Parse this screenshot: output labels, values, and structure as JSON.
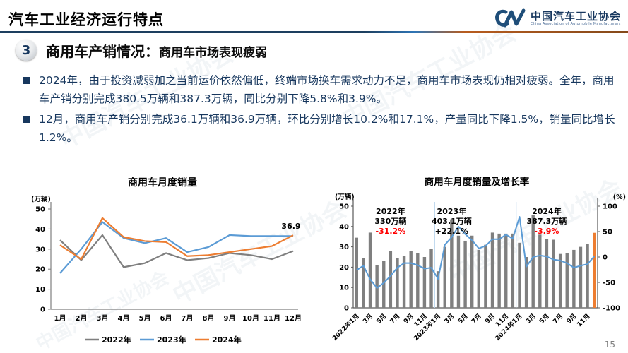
{
  "header": {
    "title": "汽车工业经济运行特点",
    "logo": {
      "name": "中国汽车工业协会",
      "subtitle": "China Association of Automobile Manufacturers"
    }
  },
  "section": {
    "number": "3",
    "title_main": "商用车产销情况：",
    "title_sub": "商用车市场表现疲弱"
  },
  "bullets": [
    "2024年，由于投资减弱加之当前运价依然偏低，终端市场换车需求动力不足，商用车市场表现仍相对疲弱。全年，商用车产销分别完成380.5万辆和387.3万辆，同比分别下降5.8%和3.9%。",
    "12月，商用车产销分别完成36.1万辆和36.9万辆，环比分别增长10.2%和17.1%，产量同比下降1.5%，销量同比增长1.2%。"
  ],
  "watermark": "中国汽车工业协会",
  "page_number": "15",
  "colors": {
    "accent_navy": "#17375e",
    "gray_series": "#7f7f7f",
    "blue_series": "#5b9bd5",
    "orange_series": "#ed7d31",
    "axis": "#7f7f7f",
    "red_negative": "#ff0000"
  },
  "chart_data": [
    {
      "type": "line",
      "title": "商用车月度销量",
      "unit_label": "(万辆)",
      "categories": [
        "1月",
        "2月",
        "3月",
        "4月",
        "5月",
        "6月",
        "7月",
        "8月",
        "9月",
        "10月",
        "11月",
        "12月"
      ],
      "series": [
        {
          "name": "2022年",
          "color": "#7f7f7f",
          "values": [
            34.5,
            24.5,
            37,
            21,
            23,
            28,
            24.5,
            25.5,
            28,
            27,
            25,
            29
          ]
        },
        {
          "name": "2023年",
          "color": "#5b9bd5",
          "values": [
            18,
            30,
            43.5,
            35.5,
            33,
            35.5,
            28.5,
            31,
            37,
            36.5,
            36.5,
            36.5
          ]
        },
        {
          "name": "2024年",
          "color": "#ed7d31",
          "values": [
            32,
            25,
            45.5,
            36,
            34,
            33.5,
            26.5,
            27,
            28.5,
            30,
            31.5,
            36.9
          ]
        }
      ],
      "end_label": "36.9",
      "ylim": [
        0,
        50
      ],
      "yticks": [
        0,
        10,
        20,
        30,
        40,
        50
      ],
      "grid": false,
      "legend_position": "bottom"
    },
    {
      "type": "bar+line",
      "title": "商用车月度销量及增长率",
      "left_unit": "(万辆)",
      "right_unit": "(%)",
      "x_labels_shown": [
        "2022年1月",
        "3月",
        "5月",
        "7月",
        "9月",
        "11月",
        "2023年1月",
        "3月",
        "5月",
        "7月",
        "9月",
        "11月",
        "2024年1月",
        "3月",
        "5月",
        "7月",
        "9月",
        "11月"
      ],
      "bars": {
        "name": "月度销量(万辆)",
        "color": "#7f7f7f",
        "highlight_last_color": "#ed7d31",
        "values": [
          34.5,
          24.5,
          37,
          21,
          23,
          28,
          24.5,
          25.5,
          28,
          27,
          25,
          29,
          18,
          30,
          43.5,
          35.5,
          33,
          35.5,
          28.5,
          31,
          37,
          36.5,
          36.5,
          36.5,
          32,
          25,
          45.5,
          36,
          34,
          33.5,
          26.5,
          27,
          28.5,
          30,
          31.5,
          36.9
        ]
      },
      "line": {
        "name": "同比增长率(%)",
        "color": "#5b9bd5",
        "values": [
          -26,
          -17,
          -44,
          -61,
          -51,
          -37,
          -21,
          -12,
          -12,
          -16,
          -23,
          -21,
          -43,
          24,
          39,
          60,
          45,
          33,
          17,
          22,
          35,
          35,
          44,
          36,
          79,
          -19,
          0,
          3,
          1,
          -5,
          -7,
          -12,
          -21,
          -17,
          -14,
          1.2
        ]
      },
      "left_ylim": [
        0,
        50
      ],
      "right_ylim": [
        -100,
        100
      ],
      "left_yticks": [
        0,
        10,
        20,
        30,
        40,
        50
      ],
      "right_yticks": [
        -100,
        -50,
        0,
        50,
        100
      ],
      "grid": false,
      "year_separator_after_index": [
        11,
        23
      ],
      "annotation_centers": [
        5,
        14,
        28
      ],
      "annotations": [
        {
          "year": "2022年",
          "total": "330万辆",
          "growth": "-31.2%",
          "growth_color": "#ff0000"
        },
        {
          "year": "2023年",
          "total": "403.1万辆",
          "growth": "+22.1%",
          "growth_color": "#000000"
        },
        {
          "year": "2024年",
          "total": "387.3万辆",
          "growth": "-3.9%",
          "growth_color": "#ff0000"
        }
      ]
    }
  ]
}
